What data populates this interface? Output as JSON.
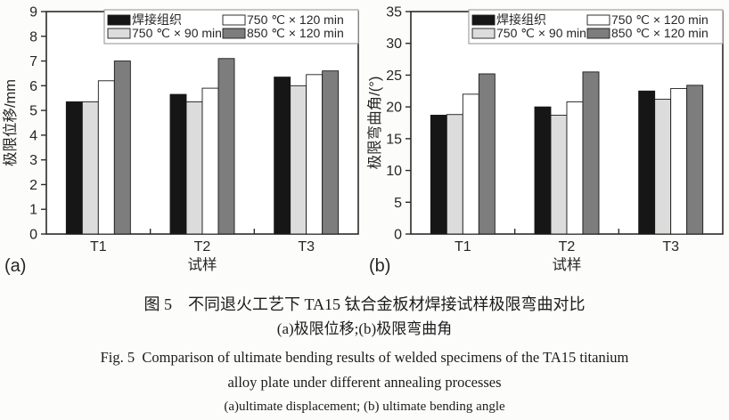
{
  "page": {
    "background": "#fcfcfb",
    "text_color": "#1c1c1c"
  },
  "caption": {
    "zh_title": "图 5　不同退火工艺下 TA15 钛合金板材焊接试样极限弯曲对比",
    "zh_subtitle": "(a)极限位移;(b)极限弯曲角",
    "en_title_line1": "Fig. 5 Comparison of ultimate bending results of welded specimens of the TA15 titanium",
    "en_title_line2": "alloy plate under different annealing processes",
    "en_subtitle": "(a)ultimate displacement; (b) ultimate bending angle"
  },
  "chart_data": [
    {
      "type": "bar",
      "panel_label": "(a)",
      "categories": [
        "T1",
        "T2",
        "T3"
      ],
      "series": [
        {
          "name": "焊接组织",
          "color": "#161616",
          "values": [
            5.35,
            5.65,
            6.35
          ]
        },
        {
          "name": "750 ℃ × 90 min",
          "color": "#dcdcdc",
          "values": [
            5.35,
            5.35,
            6.0
          ]
        },
        {
          "name": "750 ℃ × 120 min",
          "color": "#ffffff",
          "values": [
            6.2,
            5.9,
            6.45
          ]
        },
        {
          "name": "850 ℃ × 120 min",
          "color": "#7d7d7d",
          "values": [
            7.0,
            7.1,
            6.6
          ]
        }
      ],
      "xlabel": "试样",
      "ylabel": "极限位移/mm",
      "ylim": [
        0,
        9
      ],
      "ytick_step": 1,
      "grid": false,
      "legend_position": "top-inside"
    },
    {
      "type": "bar",
      "panel_label": "(b)",
      "categories": [
        "T1",
        "T2",
        "T3"
      ],
      "series": [
        {
          "name": "焊接组织",
          "color": "#161616",
          "values": [
            18.7,
            20.0,
            22.5
          ]
        },
        {
          "name": "750 ℃ × 90 min",
          "color": "#dcdcdc",
          "values": [
            18.8,
            18.7,
            21.2
          ]
        },
        {
          "name": "750 ℃ × 120 min",
          "color": "#ffffff",
          "values": [
            22.0,
            20.8,
            22.9
          ]
        },
        {
          "name": "850 ℃ × 120 min",
          "color": "#7d7d7d",
          "values": [
            25.2,
            25.5,
            23.4
          ]
        }
      ],
      "xlabel": "试样",
      "ylabel": "极限弯曲角/(°)",
      "ylim": [
        0,
        35
      ],
      "ytick_step": 5,
      "grid": false,
      "legend_position": "top-inside"
    }
  ]
}
